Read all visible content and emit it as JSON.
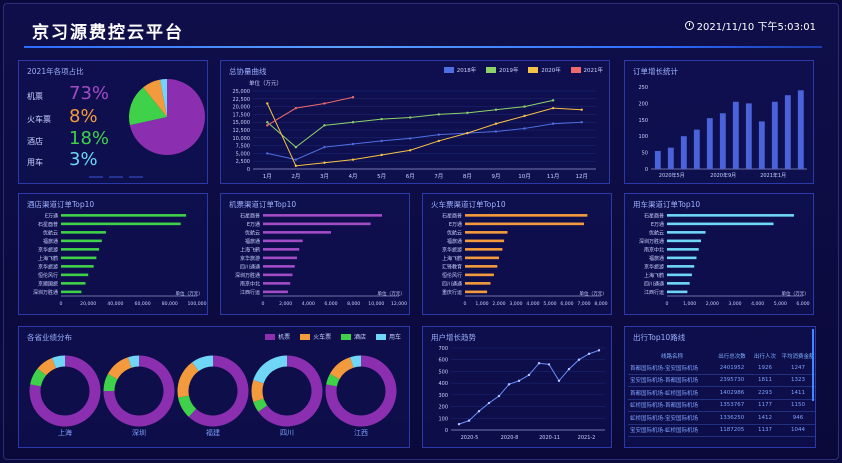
{
  "header": {
    "title": "京习源费控云平台",
    "datetime": "2021/11/10 下午5:03:01"
  },
  "colors": {
    "bg": "#0b0a3c",
    "plane": "#8b2fb0",
    "train": "#f39b3c",
    "hotel": "#3fd14a",
    "car": "#6fd6f7",
    "bar_blue": "#3b55d6"
  },
  "share": {
    "title": "2021年各项占比",
    "items": [
      {
        "label": "机票",
        "value": "73%",
        "color": "#a24cc6"
      },
      {
        "label": "火车票",
        "value": "8%",
        "color": "#f39b3c"
      },
      {
        "label": "酒店",
        "value": "18%",
        "color": "#3fd14a"
      },
      {
        "label": "用车",
        "value": "3%",
        "color": "#6fd6f7"
      }
    ],
    "chart_data": {
      "type": "pie",
      "categories": [
        "机票",
        "火车票",
        "酒店",
        "用车"
      ],
      "values": [
        73,
        8,
        18,
        3
      ]
    }
  },
  "total": {
    "title": "总协量曲线",
    "unit": "单位（万元）",
    "chart_data": {
      "type": "line",
      "categories": [
        "1月",
        "2月",
        "3月",
        "4月",
        "5月",
        "6月",
        "7月",
        "8月",
        "9月",
        "10月",
        "11月",
        "12月"
      ],
      "ylim": [
        0,
        25000
      ],
      "yticks": [
        "0",
        "2,500",
        "5,000",
        "7,500",
        "10,000",
        "12,500",
        "15,000",
        "17,500",
        "20,000",
        "22,500",
        "25,000"
      ],
      "series": [
        {
          "name": "2018年",
          "color": "#4f6fe0",
          "values": [
            5000,
            3000,
            7000,
            8000,
            9000,
            9800,
            11000,
            11500,
            12000,
            13000,
            14500,
            15000
          ]
        },
        {
          "name": "2019年",
          "color": "#8ed36a",
          "values": [
            15000,
            7000,
            14000,
            15000,
            16000,
            16500,
            17500,
            18000,
            19000,
            20000,
            22000,
            null
          ]
        },
        {
          "name": "2020年",
          "color": "#f6c245",
          "values": [
            21000,
            1000,
            2000,
            3000,
            4500,
            6000,
            9000,
            11500,
            14500,
            17000,
            19500,
            19000
          ]
        },
        {
          "name": "2021年",
          "color": "#ee6b6b",
          "values": [
            14000,
            19500,
            21000,
            23000,
            null,
            null,
            null,
            null,
            null,
            null,
            null,
            null
          ]
        }
      ]
    }
  },
  "orders": {
    "title": "订单增长统计",
    "chart_data": {
      "type": "bar",
      "xticks": [
        "2020年5月",
        "2020年9月",
        "2021年1月"
      ],
      "ylim": [
        0,
        250
      ],
      "yticks": [
        "0",
        "50",
        "100",
        "150",
        "200",
        "250"
      ],
      "values": [
        55,
        65,
        100,
        120,
        155,
        170,
        205,
        200,
        145,
        205,
        225,
        240
      ]
    }
  },
  "hotel_top": {
    "title": "酒店渠道订单Top10",
    "unit": "单位（万元）",
    "chart_data": {
      "type": "bar",
      "categories": [
        "E万通",
        "石星酉普",
        "优航云",
        "福旅通",
        "京华旅游",
        "上海飞鹤",
        "京华旅游",
        "恒伦风行",
        "京顺国旅",
        "深圳万胜通"
      ],
      "values": [
        92000,
        88000,
        33000,
        30000,
        28000,
        26000,
        24000,
        20000,
        18000,
        15000
      ],
      "xlim": [
        0,
        100000
      ],
      "xticks": [
        "0",
        "20,000",
        "40,000",
        "60,000",
        "80,000",
        "100,000"
      ]
    }
  },
  "flight_top": {
    "title": "机票渠道订单Top10",
    "unit": "单位（万元）",
    "chart_data": {
      "type": "bar",
      "categories": [
        "石星酉普",
        "E万通",
        "优航云",
        "福旅通",
        "上海飞鹤",
        "京华旅游",
        "四川通通",
        "深圳万胜通",
        "南京中北",
        "江西行运"
      ],
      "values": [
        10500,
        9500,
        6000,
        3500,
        3200,
        3000,
        2800,
        2600,
        2400,
        2200
      ],
      "xlim": [
        0,
        12000
      ],
      "xticks": [
        "0",
        "2,000",
        "4,000",
        "6,000",
        "8,000",
        "10,000",
        "12,000"
      ]
    }
  },
  "train_top": {
    "title": "火车票渠道订单Top10",
    "unit": "单位（万元）",
    "chart_data": {
      "type": "bar",
      "categories": [
        "石星酉普",
        "E万通",
        "优航云",
        "福旅通",
        "京华旅游",
        "上海飞鹤",
        "汇锋教育",
        "恒伦风行",
        "四川通通",
        "重庆行运"
      ],
      "values": [
        7200,
        7000,
        2500,
        2300,
        2200,
        2000,
        1900,
        1700,
        1500,
        1300
      ],
      "xlim": [
        0,
        8000
      ],
      "xticks": [
        "0",
        "1,000",
        "2,000",
        "3,000",
        "4,000",
        "5,000",
        "6,000",
        "7,000",
        "8,000"
      ]
    }
  },
  "car_top": {
    "title": "用车渠道订单Top10",
    "unit": "单位（万元）",
    "chart_data": {
      "type": "bar",
      "categories": [
        "石星酉普",
        "E万通",
        "优航云",
        "深圳万胜通",
        "南京中北",
        "福旅通",
        "京华旅游",
        "上海飞鹤",
        "四川通通",
        "江西行运"
      ],
      "values": [
        5600,
        4700,
        1700,
        1500,
        1400,
        1300,
        1200,
        1100,
        1000,
        900
      ],
      "xlim": [
        0,
        6000
      ],
      "xticks": [
        "0",
        "1,000",
        "2,000",
        "3,000",
        "4,000",
        "5,000",
        "6,000"
      ]
    }
  },
  "regions": {
    "title": "各省业绩分布",
    "legend": [
      "机票",
      "火车票",
      "酒店",
      "用车"
    ],
    "items": [
      {
        "name": "上海",
        "values": [
          78,
          8,
          8,
          6
        ]
      },
      {
        "name": "深圳",
        "values": [
          75,
          12,
          8,
          5
        ]
      },
      {
        "name": "福建",
        "values": [
          62,
          18,
          10,
          10
        ]
      },
      {
        "name": "四川",
        "values": [
          65,
          10,
          5,
          20
        ]
      },
      {
        "name": "江西",
        "values": [
          78,
          12,
          5,
          5
        ]
      }
    ]
  },
  "users": {
    "title": "用户增长趋势",
    "chart_data": {
      "type": "line",
      "xticks": [
        "2020-5",
        "2020-8",
        "2020-11",
        "2021-2"
      ],
      "ylim": [
        0,
        700
      ],
      "yticks": [
        "0",
        "100",
        "200",
        "300",
        "400",
        "500",
        "600",
        "700"
      ],
      "values": [
        50,
        80,
        160,
        230,
        290,
        390,
        420,
        470,
        570,
        560,
        420,
        520,
        600,
        650,
        680
      ]
    }
  },
  "routes": {
    "title": "出行Top10路线",
    "headers": [
      "线路名称",
      "出行总次数",
      "出行人次",
      "平均消费金额"
    ],
    "rows": [
      [
        "首都国际机场-宝安国际机场",
        "2401952",
        "1926",
        "1247"
      ],
      [
        "宝安国际机场-首都国际机场",
        "2395730",
        "1811",
        "1323"
      ],
      [
        "首都国际机场-虹桥国际机场",
        "1402986",
        "2293",
        "1411"
      ],
      [
        "虹桥国际机场-首都国际机场",
        "1353767",
        "1177",
        "1150"
      ],
      [
        "虹桥国际机场-宝安国际机场",
        "1336250",
        "1412",
        "946"
      ],
      [
        "宝安国际机场-虹桥国际机场",
        "1187205",
        "1137",
        "1044"
      ]
    ]
  }
}
